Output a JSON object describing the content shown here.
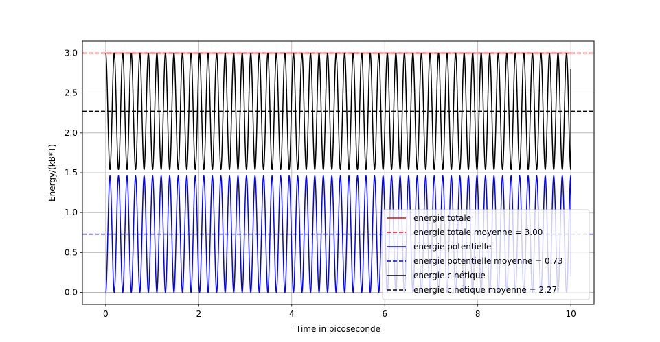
{
  "chart_data": {
    "type": "line",
    "title": "",
    "xlabel": "Time in picoseconde",
    "ylabel": "Energy/(kB*T)",
    "xlim": [
      -0.5,
      10.5
    ],
    "ylim": [
      -0.15,
      3.15
    ],
    "xticks": [
      0,
      2,
      4,
      6,
      8,
      10
    ],
    "yticks": [
      0.0,
      0.5,
      1.0,
      1.5,
      2.0,
      2.5,
      3.0
    ],
    "xtick_labels": [
      "0",
      "2",
      "4",
      "6",
      "8",
      "10"
    ],
    "ytick_labels": [
      "0.0",
      "0.5",
      "1.0",
      "1.5",
      "2.0",
      "2.5",
      "3.0"
    ],
    "grid": true,
    "legend_position": "lower right",
    "series": [
      {
        "name": "energie totale",
        "color": "#ff0000",
        "style": "solid",
        "kind": "constant",
        "value": 3.0,
        "x_range": [
          0,
          10
        ]
      },
      {
        "name": "energie totale moyenne = 3.00",
        "color": "#ff0000",
        "style": "dashed",
        "kind": "hline",
        "value": 3.0
      },
      {
        "name": "energie potentielle",
        "color": "#0000ff",
        "style": "solid",
        "kind": "oscillation",
        "x_range": [
          0,
          10
        ],
        "min": 0.0,
        "max": 1.46,
        "cycles": 54.5,
        "start_phase": "min",
        "end_value": 0.2
      },
      {
        "name": "energie potentielle moyenne = 0.73",
        "color": "#0000ff",
        "style": "dashed",
        "kind": "hline",
        "value": 0.73
      },
      {
        "name": "energie cinétique",
        "color": "#000000",
        "style": "solid",
        "kind": "oscillation",
        "x_range": [
          0,
          10
        ],
        "min": 1.54,
        "max": 3.0,
        "cycles": 54.5,
        "start_phase": "max",
        "end_value": 2.8
      },
      {
        "name": "energie cinétique moyenne = 2.27",
        "color": "#000000",
        "style": "dashed",
        "kind": "hline",
        "value": 2.27
      }
    ]
  }
}
